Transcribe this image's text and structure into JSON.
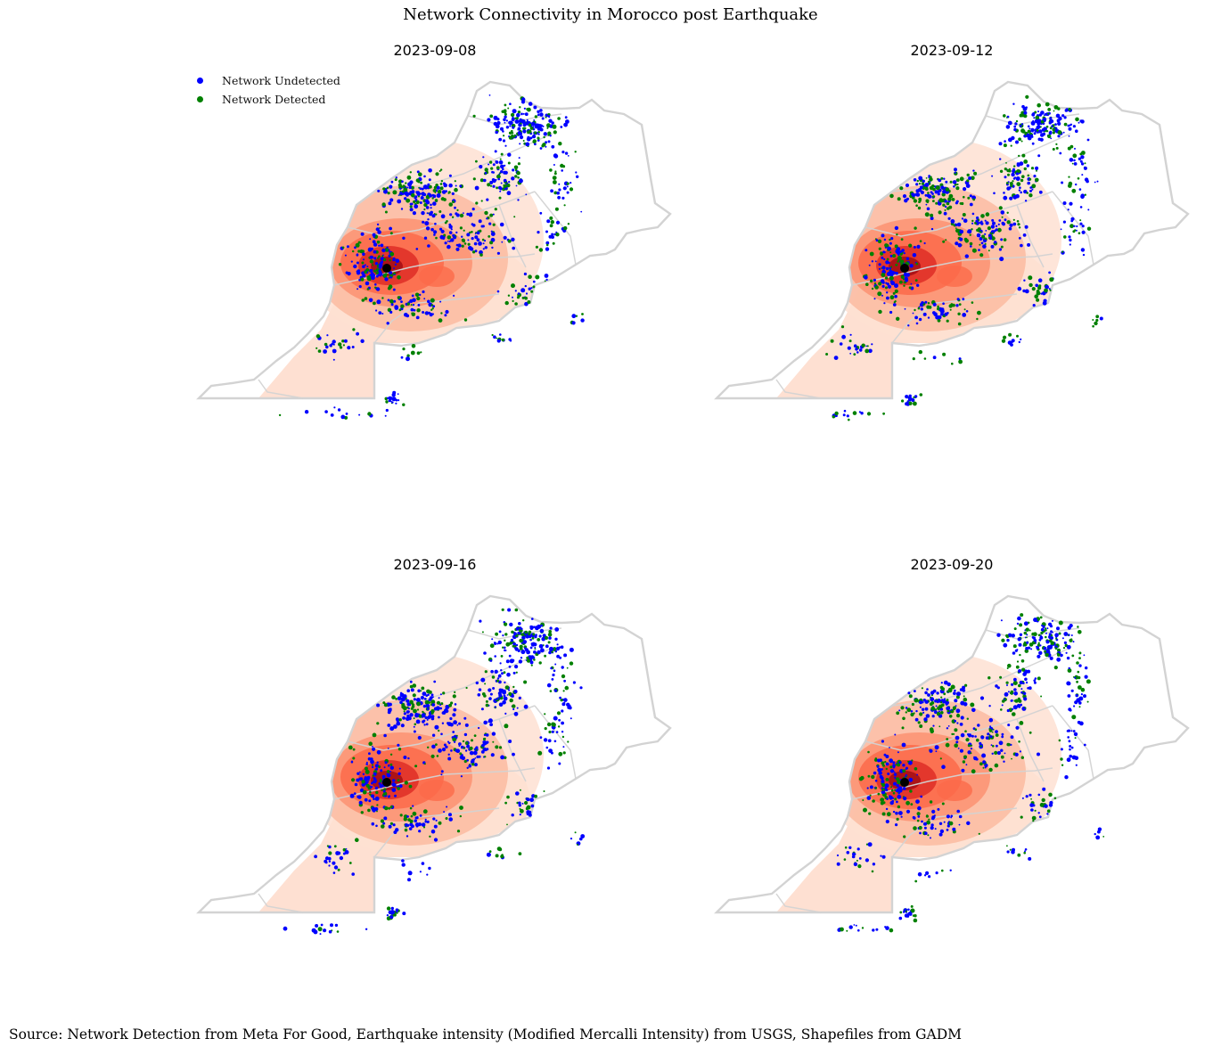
{
  "figure": {
    "title": "Network Connectivity in Morocco post Earthquake",
    "source": "Source: Network Detection from Meta For Good,  Earthquake intensity (Modified Mercalli Intensity) from USGS, Shapefiles from GADM"
  },
  "legend": {
    "undetected": {
      "label": "Network Undetected",
      "color": "#0000ff"
    },
    "detected": {
      "label": "Network Detected",
      "color": "#008000"
    }
  },
  "panels": [
    {
      "date": "2023-09-08"
    },
    {
      "date": "2023-09-12"
    },
    {
      "date": "2023-09-16"
    },
    {
      "date": "2023-09-20"
    }
  ],
  "map_style": {
    "border_color": "#d3d3d3",
    "intensity_colors": [
      "#fee0d2",
      "#fcbba1",
      "#fc9272",
      "#fb6a4a",
      "#de2d26",
      "#a50f15"
    ],
    "epicenter_color": "#000000"
  }
}
